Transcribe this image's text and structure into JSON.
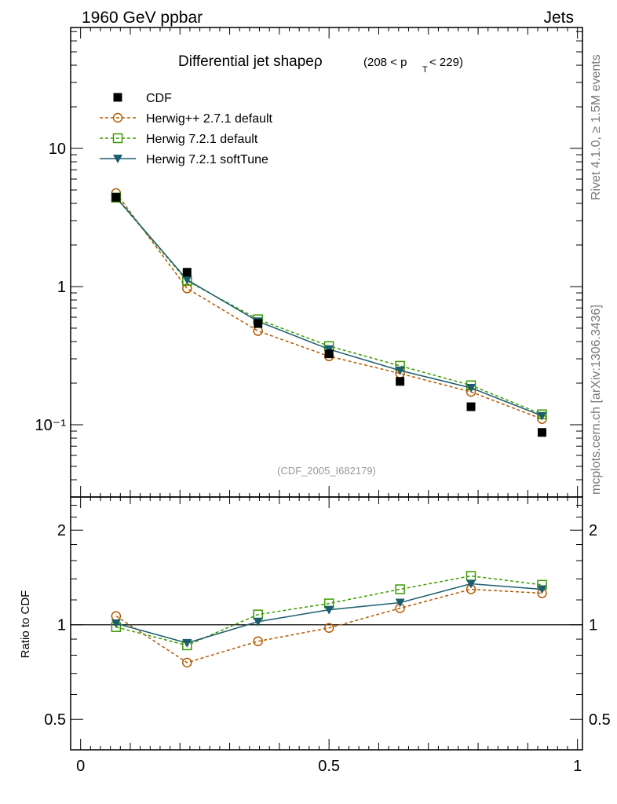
{
  "header": {
    "left": "1960 GeV ppbar",
    "right": "Jets"
  },
  "side_labels": {
    "rivet": "Rivet 4.1.0, ≥ 1.5M events",
    "mcplots": "mcplots.cern.ch [arXiv:1306.3436]"
  },
  "analysis_id": "(CDF_2005_I682179)",
  "colors": {
    "cdf": "#000000",
    "herwigpp": "#b35a00",
    "herwig7_default": "#3c9a00",
    "herwig7_soft": "#1b5d6e",
    "ref_line": "#000000"
  },
  "chart_data": {
    "type": "line",
    "title": {
      "main": "Differential jet shapeρ",
      "range_pre": "(208 < p",
      "range_sub": "T",
      "range_post": " < 229)"
    },
    "xlabel": "",
    "ylabel_ratio": "Ratio to CDF",
    "xlim": [
      -0.02,
      1.01
    ],
    "ylim": [
      0.03,
      75
    ],
    "ylim_ratio": [
      0.4,
      2.55
    ],
    "yscale": "log",
    "x_ticks": [
      {
        "v": 0,
        "label": "0"
      },
      {
        "v": 0.5,
        "label": "0.5"
      },
      {
        "v": 1,
        "label": "1"
      }
    ],
    "y_ticks": [
      {
        "v": 0.1,
        "label": "10⁻¹"
      },
      {
        "v": 1,
        "label": "1"
      },
      {
        "v": 10,
        "label": "10"
      }
    ],
    "y_ticks_ratio": [
      {
        "v": 0.5,
        "label": "0.5"
      },
      {
        "v": 1,
        "label": "1"
      },
      {
        "v": 2,
        "label": "2"
      }
    ],
    "legend_position": "top-left",
    "x": [
      0.0714,
      0.2143,
      0.3571,
      0.5,
      0.6429,
      0.7857,
      0.9286
    ],
    "series": [
      {
        "name": "CDF",
        "key": "cdf",
        "marker": "square-filled",
        "line": "none",
        "values": [
          4.43,
          1.27,
          0.54,
          0.326,
          0.206,
          0.135,
          0.088
        ],
        "ratio": [
          1,
          1,
          1,
          1,
          1,
          1,
          1
        ]
      },
      {
        "name": "Herwig++ 2.7.1 default",
        "key": "herwigpp",
        "marker": "circle-open",
        "line": "dashed",
        "values": [
          4.75,
          0.97,
          0.477,
          0.313,
          0.235,
          0.173,
          0.11
        ],
        "ratio": [
          1.066,
          0.758,
          0.886,
          0.977,
          1.129,
          1.297,
          1.26
        ]
      },
      {
        "name": "Herwig 7.2.1 default",
        "key": "herwig7_default",
        "marker": "square-open",
        "line": "dashed",
        "values": [
          4.4,
          1.1,
          0.58,
          0.371,
          0.267,
          0.193,
          0.119
        ],
        "ratio": [
          0.983,
          0.86,
          1.078,
          1.169,
          1.297,
          1.43,
          1.34
        ]
      },
      {
        "name": "Herwig 7.2.1 softTune",
        "key": "herwig7_soft",
        "marker": "triangle-down-filled",
        "line": "solid",
        "values": [
          4.43,
          1.12,
          0.56,
          0.352,
          0.247,
          0.185,
          0.116
        ],
        "ratio": [
          1.01,
          0.875,
          1.023,
          1.116,
          1.176,
          1.35,
          1.297
        ]
      }
    ]
  }
}
